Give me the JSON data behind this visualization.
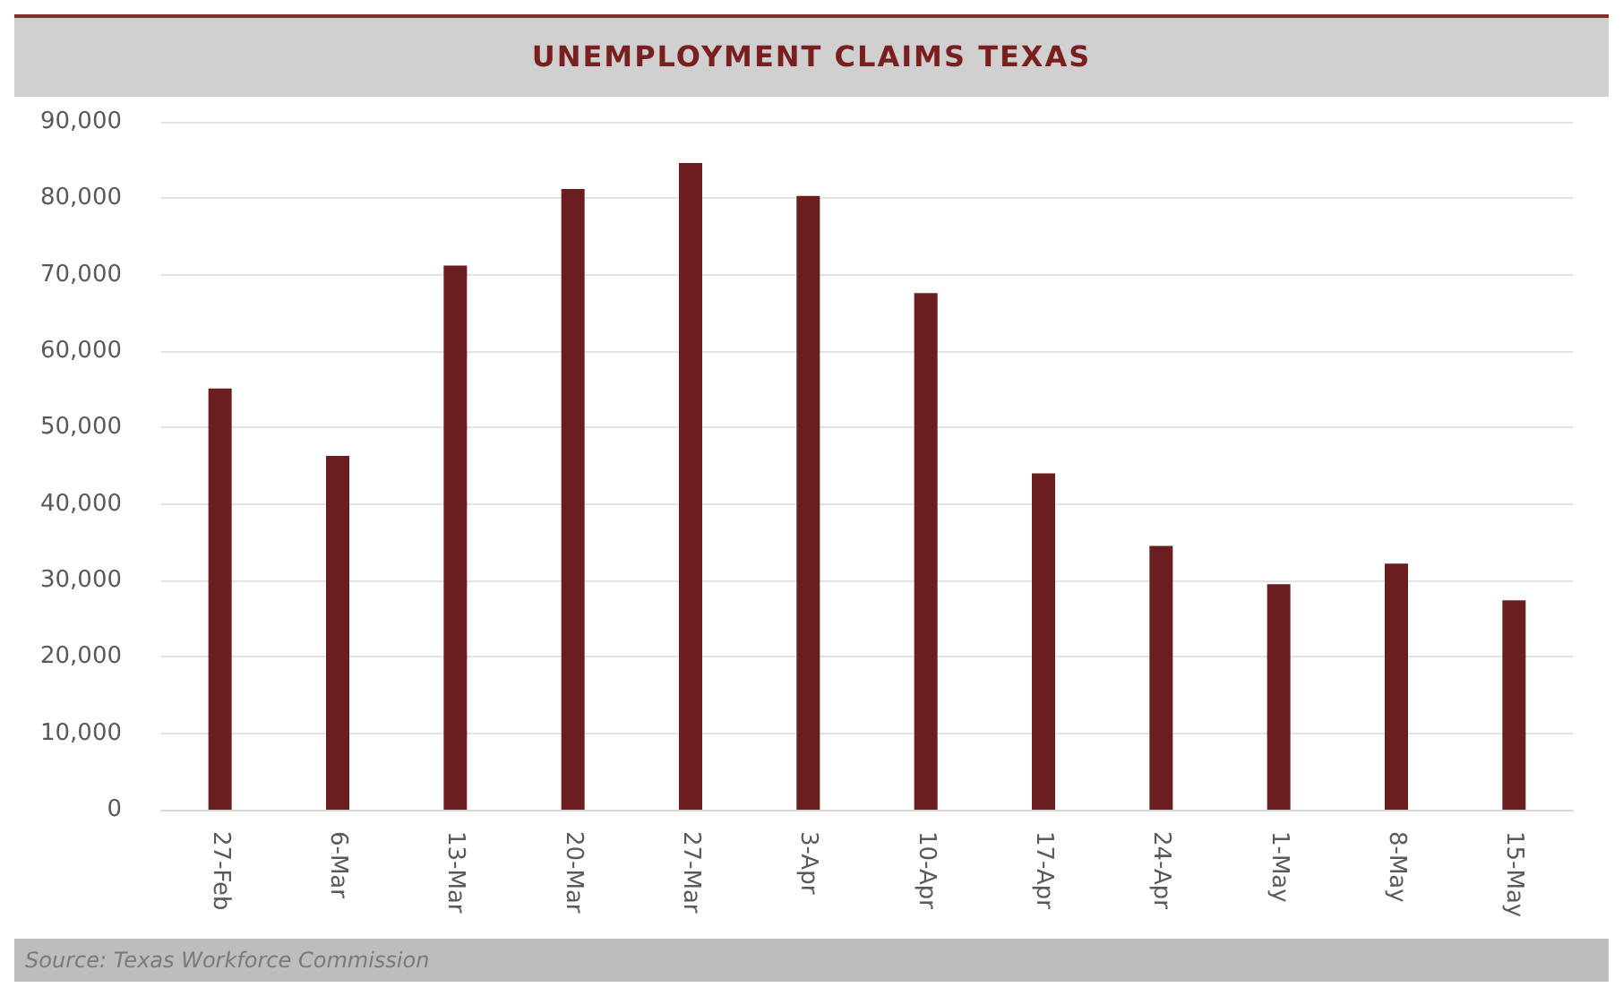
{
  "chart_data": {
    "type": "bar",
    "title": "UNEMPLOYMENT CLAIMS TEXAS",
    "categories": [
      "27-Feb",
      "6-Mar",
      "13-Mar",
      "20-Mar",
      "27-Mar",
      "3-Apr",
      "10-Apr",
      "17-Apr",
      "24-Apr",
      "1-May",
      "8-May",
      "15-May"
    ],
    "values": [
      55100,
      46300,
      71200,
      81200,
      84600,
      80300,
      67600,
      44000,
      34500,
      29500,
      32200,
      27400
    ],
    "color": "#6b1e1e",
    "ylim": [
      0,
      90000
    ],
    "yticks": [
      0,
      {
        "value": 10000,
        "label": "10,000"
      },
      {
        "value": 20000,
        "label": "20,000"
      },
      {
        "value": 30000,
        "label": "30,000"
      },
      {
        "value": 40000,
        "label": "40,000"
      },
      {
        "value": 50000,
        "label": "50,000"
      },
      {
        "value": 60000,
        "label": "60,000"
      },
      {
        "value": 70000,
        "label": "70,000"
      },
      {
        "value": 80000,
        "label": "80,000"
      },
      {
        "value": 90000,
        "label": "90,000"
      }
    ],
    "grid": "y",
    "annotations": [
      "Source: Texas Workforce Commission"
    ]
  }
}
